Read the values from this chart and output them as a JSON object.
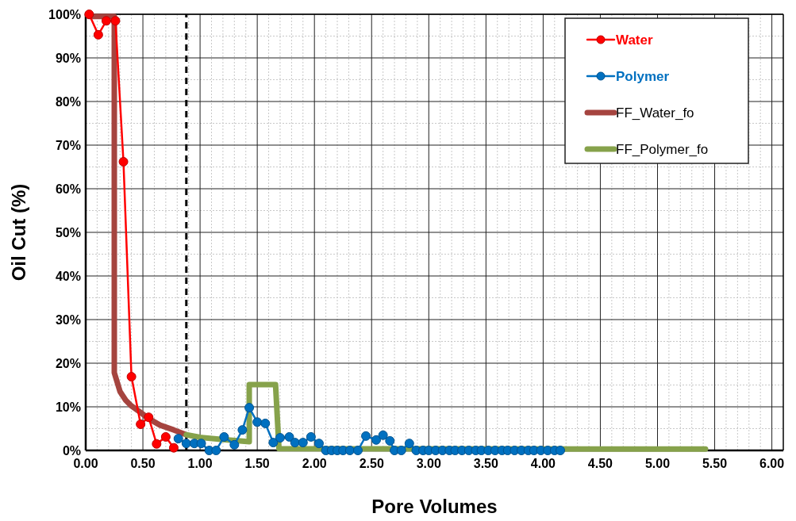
{
  "chart_data": {
    "type": "line",
    "xlabel": "Pore Volumes",
    "ylabel": "Oil Cut (%)",
    "xlim": [
      0,
      6.1
    ],
    "ylim": [
      0,
      100
    ],
    "xticks": [
      {
        "value": 0,
        "label": "0.00"
      },
      {
        "value": 0.5,
        "label": "0.50"
      },
      {
        "value": 1,
        "label": "1.00"
      },
      {
        "value": 1.5,
        "label": "1.50"
      },
      {
        "value": 2,
        "label": "2.00"
      },
      {
        "value": 2.5,
        "label": "2.50"
      },
      {
        "value": 3,
        "label": "3.00"
      },
      {
        "value": 3.5,
        "label": "3.50"
      },
      {
        "value": 4,
        "label": "4.00"
      },
      {
        "value": 4.5,
        "label": "4.50"
      },
      {
        "value": 5,
        "label": "5.00"
      },
      {
        "value": 5.5,
        "label": "5.50"
      },
      {
        "value": 6,
        "label": "6.00"
      }
    ],
    "yticks": [
      {
        "value": 0,
        "label": "0%"
      },
      {
        "value": 10,
        "label": "10%"
      },
      {
        "value": 20,
        "label": "20%"
      },
      {
        "value": 30,
        "label": "30%"
      },
      {
        "value": 40,
        "label": "40%"
      },
      {
        "value": 50,
        "label": "50%"
      },
      {
        "value": 60,
        "label": "60%"
      },
      {
        "value": 70,
        "label": "70%"
      },
      {
        "value": 80,
        "label": "80%"
      },
      {
        "value": 90,
        "label": "90%"
      },
      {
        "value": 100,
        "label": "100%"
      }
    ],
    "grid": true,
    "legend": "top right",
    "ref_lines": [
      {
        "axis": "x",
        "value": 0.88,
        "color": "#000000",
        "line_style": "dashed"
      }
    ],
    "series": [
      {
        "name": "Water",
        "color": "#ff0000",
        "marker": "circle",
        "x": [
          0.03,
          0.11,
          0.18,
          0.26,
          0.33,
          0.4,
          0.48,
          0.55,
          0.62,
          0.7,
          0.77
        ],
        "values": [
          100,
          95.3,
          98.5,
          98.5,
          66.2,
          16.9,
          6.0,
          7.6,
          1.5,
          3.1,
          0.6
        ]
      },
      {
        "name": "Polymer",
        "color": "#0070c0",
        "marker": "circle",
        "x": [
          0.81,
          0.88,
          0.95,
          1.01,
          1.08,
          1.14,
          1.21,
          1.3,
          1.37,
          1.43,
          1.5,
          1.57,
          1.64,
          1.7,
          1.78,
          1.83,
          1.9,
          1.97,
          2.04,
          2.1,
          2.15,
          2.2,
          2.25,
          2.31,
          2.38,
          2.45,
          2.54,
          2.6,
          2.66,
          2.7,
          2.76,
          2.83,
          2.89,
          2.95,
          3.0,
          3.06,
          3.12,
          3.18,
          3.23,
          3.29,
          3.35,
          3.41,
          3.46,
          3.52,
          3.58,
          3.64,
          3.69,
          3.75,
          3.81,
          3.87,
          3.92,
          3.98,
          4.04,
          4.1,
          4.15
        ],
        "values": [
          2.7,
          1.6,
          1.6,
          1.6,
          0,
          0,
          3.1,
          1.3,
          4.7,
          9.8,
          6.5,
          6.2,
          1.8,
          2.9,
          3.1,
          1.8,
          1.8,
          3.1,
          1.6,
          0,
          0,
          0,
          0,
          0,
          0,
          3.3,
          2.4,
          3.5,
          2.2,
          0,
          0,
          1.6,
          0,
          0,
          0,
          0,
          0,
          0,
          0,
          0,
          0,
          0,
          0,
          0,
          0,
          0,
          0,
          0,
          0,
          0,
          0,
          0,
          0,
          0,
          0
        ]
      },
      {
        "name": "FF_Water_fo",
        "color": "#a5443f",
        "marker": "none",
        "x": [
          0.03,
          0.25,
          0.25,
          0.3,
          0.35,
          0.4,
          0.48,
          0.55,
          0.65,
          0.77,
          0.88
        ],
        "values": [
          99.5,
          99.5,
          17.8,
          13.5,
          11.5,
          10.2,
          8.7,
          7.3,
          5.8,
          4.7,
          3.6
        ]
      },
      {
        "name": "FF_Polymer_fo",
        "color": "#86a24b",
        "marker": "none",
        "x": [
          0.88,
          1.0,
          1.2,
          1.43,
          1.43,
          1.66,
          1.69,
          5.42
        ],
        "values": [
          3.6,
          3.0,
          2.5,
          2.0,
          15.1,
          15.1,
          0.4,
          0.3
        ]
      }
    ]
  }
}
